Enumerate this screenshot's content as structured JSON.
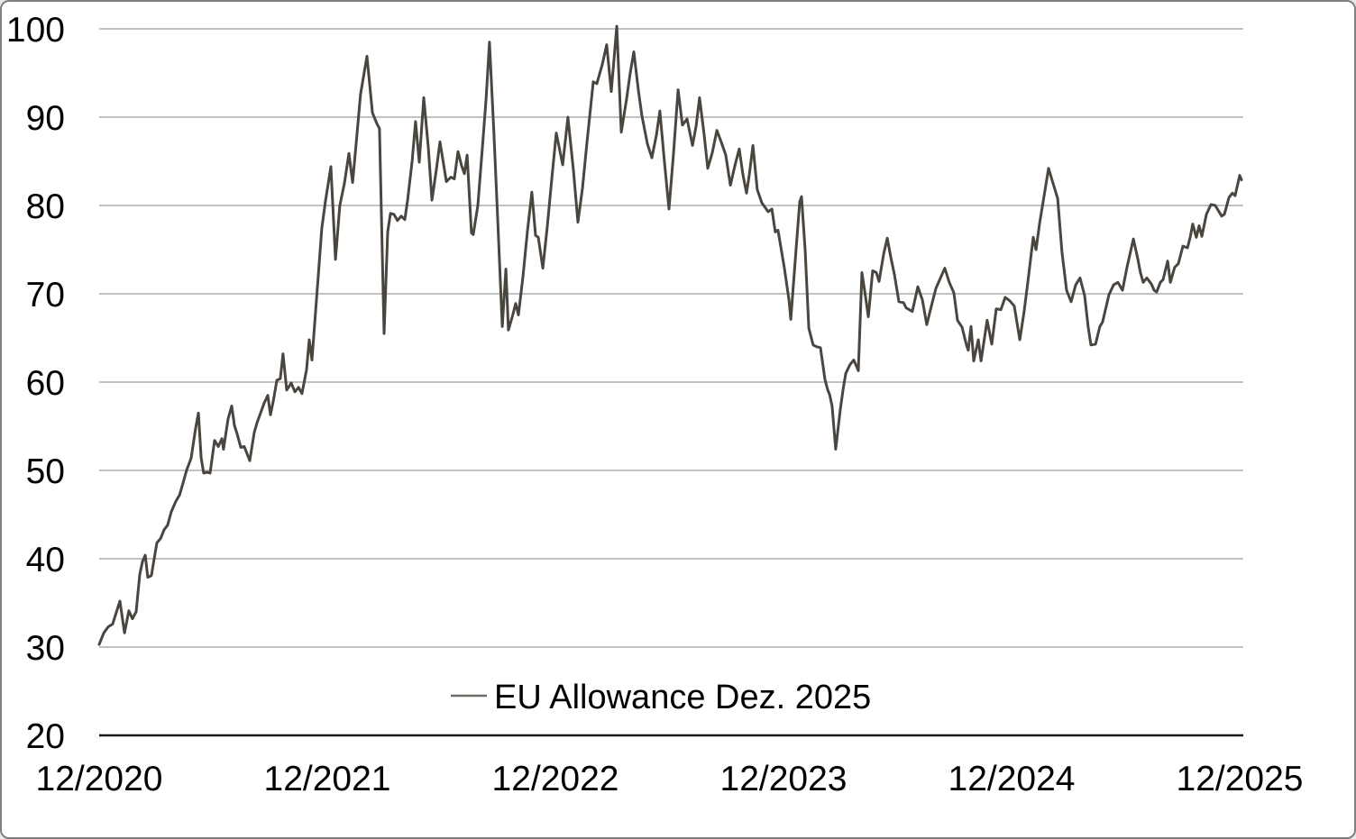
{
  "window": {
    "background": "#ffffff",
    "border_color": "#7f7f7f"
  },
  "chart_data": {
    "type": "line",
    "title": "",
    "xlabel": "",
    "ylabel": "",
    "grid": "horizontal",
    "x_tick_labels": [
      "12/2020",
      "12/2021",
      "12/2022",
      "12/2023",
      "12/2024",
      "12/2025"
    ],
    "x_range_years": [
      0,
      5
    ],
    "y_ticks": [
      20,
      30,
      40,
      50,
      60,
      70,
      80,
      90,
      100
    ],
    "ylim": [
      20,
      100
    ],
    "legend_position": "bottom-center",
    "colors": {
      "line": "#4b453f",
      "legend_marker": "#6e6a64",
      "gridline": "#9d9d9d",
      "axis_line": "#161616",
      "text": "#000000",
      "background": "#ffffff"
    },
    "series": [
      {
        "name": "EU Allowance Dez. 2025",
        "points": [
          [
            0.0,
            30.3
          ],
          [
            0.02,
            31.6
          ],
          [
            0.04,
            32.3
          ],
          [
            0.059,
            32.6
          ],
          [
            0.091,
            35.2
          ],
          [
            0.111,
            31.6
          ],
          [
            0.13,
            34.1
          ],
          [
            0.146,
            33.2
          ],
          [
            0.162,
            34.0
          ],
          [
            0.178,
            38.2
          ],
          [
            0.19,
            39.7
          ],
          [
            0.202,
            40.4
          ],
          [
            0.213,
            37.9
          ],
          [
            0.229,
            38.1
          ],
          [
            0.253,
            41.8
          ],
          [
            0.269,
            42.3
          ],
          [
            0.285,
            43.3
          ],
          [
            0.3,
            43.8
          ],
          [
            0.316,
            45.3
          ],
          [
            0.336,
            46.5
          ],
          [
            0.352,
            47.2
          ],
          [
            0.368,
            48.6
          ],
          [
            0.383,
            50.0
          ],
          [
            0.403,
            51.4
          ],
          [
            0.423,
            54.8
          ],
          [
            0.435,
            56.5
          ],
          [
            0.447,
            51.4
          ],
          [
            0.458,
            49.7
          ],
          [
            0.474,
            49.8
          ],
          [
            0.486,
            49.7
          ],
          [
            0.506,
            53.4
          ],
          [
            0.522,
            52.7
          ],
          [
            0.538,
            53.6
          ],
          [
            0.545,
            52.4
          ],
          [
            0.565,
            55.8
          ],
          [
            0.581,
            57.3
          ],
          [
            0.593,
            55.1
          ],
          [
            0.605,
            54.1
          ],
          [
            0.621,
            52.6
          ],
          [
            0.636,
            52.7
          ],
          [
            0.66,
            51.1
          ],
          [
            0.68,
            54.3
          ],
          [
            0.692,
            55.4
          ],
          [
            0.723,
            57.6
          ],
          [
            0.739,
            58.5
          ],
          [
            0.751,
            56.3
          ],
          [
            0.763,
            57.8
          ],
          [
            0.779,
            60.2
          ],
          [
            0.794,
            60.4
          ],
          [
            0.806,
            63.2
          ],
          [
            0.822,
            59.1
          ],
          [
            0.842,
            59.9
          ],
          [
            0.858,
            58.9
          ],
          [
            0.874,
            59.4
          ],
          [
            0.889,
            58.7
          ],
          [
            0.909,
            61.4
          ],
          [
            0.921,
            64.8
          ],
          [
            0.933,
            62.5
          ],
          [
            0.96,
            71.9
          ],
          [
            0.976,
            77.4
          ],
          [
            0.992,
            80.5
          ],
          [
            1.016,
            84.4
          ],
          [
            1.036,
            73.9
          ],
          [
            1.055,
            80.0
          ],
          [
            1.075,
            82.5
          ],
          [
            1.095,
            85.9
          ],
          [
            1.111,
            82.6
          ],
          [
            1.13,
            88.0
          ],
          [
            1.146,
            92.6
          ],
          [
            1.174,
            96.9
          ],
          [
            1.198,
            90.5
          ],
          [
            1.217,
            89.3
          ],
          [
            1.229,
            88.7
          ],
          [
            1.249,
            65.5
          ],
          [
            1.265,
            77.0
          ],
          [
            1.277,
            79.1
          ],
          [
            1.292,
            79.0
          ],
          [
            1.308,
            78.3
          ],
          [
            1.324,
            78.8
          ],
          [
            1.34,
            78.4
          ],
          [
            1.352,
            80.6
          ],
          [
            1.372,
            85.0
          ],
          [
            1.387,
            89.5
          ],
          [
            1.403,
            84.9
          ],
          [
            1.423,
            92.2
          ],
          [
            1.443,
            86.5
          ],
          [
            1.459,
            80.6
          ],
          [
            1.478,
            84.0
          ],
          [
            1.494,
            87.2
          ],
          [
            1.522,
            82.7
          ],
          [
            1.542,
            83.2
          ],
          [
            1.557,
            83.0
          ],
          [
            1.573,
            86.1
          ],
          [
            1.589,
            84.5
          ],
          [
            1.601,
            83.6
          ],
          [
            1.613,
            85.7
          ],
          [
            1.632,
            76.9
          ],
          [
            1.64,
            76.7
          ],
          [
            1.66,
            80.0
          ],
          [
            1.68,
            86.5
          ],
          [
            1.696,
            92.0
          ],
          [
            1.711,
            98.5
          ],
          [
            1.731,
            88.0
          ],
          [
            1.747,
            78.5
          ],
          [
            1.767,
            66.3
          ],
          [
            1.783,
            72.8
          ],
          [
            1.794,
            65.9
          ],
          [
            1.81,
            67.3
          ],
          [
            1.826,
            68.9
          ],
          [
            1.838,
            67.6
          ],
          [
            1.858,
            72.0
          ],
          [
            1.877,
            77.0
          ],
          [
            1.897,
            81.5
          ],
          [
            1.913,
            76.6
          ],
          [
            1.925,
            76.4
          ],
          [
            1.945,
            72.9
          ],
          [
            1.964,
            77.5
          ],
          [
            1.984,
            83.0
          ],
          [
            2.004,
            88.2
          ],
          [
            2.032,
            84.6
          ],
          [
            2.055,
            90.0
          ],
          [
            2.079,
            84.0
          ],
          [
            2.099,
            78.1
          ],
          [
            2.119,
            82.0
          ],
          [
            2.138,
            87.0
          ],
          [
            2.158,
            92.0
          ],
          [
            2.166,
            94.0
          ],
          [
            2.182,
            93.8
          ],
          [
            2.206,
            96.0
          ],
          [
            2.225,
            98.2
          ],
          [
            2.245,
            92.9
          ],
          [
            2.269,
            100.3
          ],
          [
            2.289,
            88.3
          ],
          [
            2.312,
            92.0
          ],
          [
            2.328,
            95.0
          ],
          [
            2.344,
            97.4
          ],
          [
            2.364,
            93.0
          ],
          [
            2.379,
            90.2
          ],
          [
            2.403,
            87.0
          ],
          [
            2.423,
            85.4
          ],
          [
            2.443,
            88.0
          ],
          [
            2.458,
            90.7
          ],
          [
            2.478,
            85.0
          ],
          [
            2.498,
            79.6
          ],
          [
            2.518,
            86.0
          ],
          [
            2.538,
            93.1
          ],
          [
            2.557,
            89.1
          ],
          [
            2.577,
            89.8
          ],
          [
            2.601,
            86.8
          ],
          [
            2.617,
            89.0
          ],
          [
            2.632,
            92.2
          ],
          [
            2.652,
            88.0
          ],
          [
            2.668,
            84.2
          ],
          [
            2.688,
            86.0
          ],
          [
            2.708,
            88.5
          ],
          [
            2.727,
            87.2
          ],
          [
            2.747,
            85.7
          ],
          [
            2.767,
            82.3
          ],
          [
            2.787,
            84.5
          ],
          [
            2.806,
            86.4
          ],
          [
            2.822,
            83.5
          ],
          [
            2.838,
            81.4
          ],
          [
            2.85,
            83.5
          ],
          [
            2.866,
            86.8
          ],
          [
            2.885,
            81.8
          ],
          [
            2.905,
            80.3
          ],
          [
            2.933,
            79.3
          ],
          [
            2.949,
            79.6
          ],
          [
            2.964,
            77.0
          ],
          [
            2.976,
            77.2
          ],
          [
            3.004,
            72.9
          ],
          [
            3.024,
            69.3
          ],
          [
            3.032,
            67.1
          ],
          [
            3.051,
            73.6
          ],
          [
            3.071,
            80.4
          ],
          [
            3.079,
            81.0
          ],
          [
            3.095,
            75.0
          ],
          [
            3.111,
            66.1
          ],
          [
            3.13,
            64.2
          ],
          [
            3.146,
            64.0
          ],
          [
            3.162,
            63.9
          ],
          [
            3.182,
            60.3
          ],
          [
            3.194,
            59.1
          ],
          [
            3.202,
            58.6
          ],
          [
            3.213,
            57.3
          ],
          [
            3.229,
            52.4
          ],
          [
            3.249,
            56.9
          ],
          [
            3.261,
            59.1
          ],
          [
            3.273,
            61.0
          ],
          [
            3.292,
            62.0
          ],
          [
            3.308,
            62.5
          ],
          [
            3.32,
            61.8
          ],
          [
            3.328,
            61.3
          ],
          [
            3.344,
            72.4
          ],
          [
            3.36,
            69.6
          ],
          [
            3.372,
            67.4
          ],
          [
            3.391,
            72.6
          ],
          [
            3.407,
            72.4
          ],
          [
            3.419,
            71.4
          ],
          [
            3.439,
            74.5
          ],
          [
            3.455,
            76.3
          ],
          [
            3.47,
            74.2
          ],
          [
            3.486,
            72.2
          ],
          [
            3.506,
            69.1
          ],
          [
            3.526,
            69.0
          ],
          [
            3.538,
            68.4
          ],
          [
            3.565,
            68.0
          ],
          [
            3.589,
            70.8
          ],
          [
            3.609,
            69.3
          ],
          [
            3.628,
            66.5
          ],
          [
            3.652,
            69.0
          ],
          [
            3.668,
            70.6
          ],
          [
            3.707,
            72.9
          ],
          [
            3.727,
            71.3
          ],
          [
            3.747,
            70.1
          ],
          [
            3.763,
            67.0
          ],
          [
            3.783,
            66.2
          ],
          [
            3.802,
            64.2
          ],
          [
            3.81,
            63.6
          ],
          [
            3.822,
            66.3
          ],
          [
            3.834,
            62.4
          ],
          [
            3.854,
            64.8
          ],
          [
            3.866,
            62.4
          ],
          [
            3.893,
            67.0
          ],
          [
            3.913,
            64.3
          ],
          [
            3.933,
            68.3
          ],
          [
            3.953,
            68.2
          ],
          [
            3.972,
            69.6
          ],
          [
            3.992,
            69.2
          ],
          [
            4.012,
            68.6
          ],
          [
            4.036,
            64.8
          ],
          [
            4.055,
            68.0
          ],
          [
            4.071,
            71.3
          ],
          [
            4.095,
            76.4
          ],
          [
            4.107,
            75.0
          ],
          [
            4.123,
            78.0
          ],
          [
            4.142,
            81.0
          ],
          [
            4.162,
            84.2
          ],
          [
            4.182,
            82.5
          ],
          [
            4.202,
            80.8
          ],
          [
            4.221,
            74.7
          ],
          [
            4.241,
            70.4
          ],
          [
            4.261,
            69.1
          ],
          [
            4.281,
            71.0
          ],
          [
            4.3,
            71.8
          ],
          [
            4.32,
            69.8
          ],
          [
            4.336,
            66.2
          ],
          [
            4.348,
            64.2
          ],
          [
            4.368,
            64.3
          ],
          [
            4.387,
            66.3
          ],
          [
            4.399,
            66.8
          ],
          [
            4.427,
            69.9
          ],
          [
            4.447,
            71.0
          ],
          [
            4.466,
            71.3
          ],
          [
            4.486,
            70.4
          ],
          [
            4.506,
            73.0
          ],
          [
            4.534,
            76.2
          ],
          [
            4.553,
            74.0
          ],
          [
            4.565,
            72.4
          ],
          [
            4.577,
            71.3
          ],
          [
            4.593,
            71.8
          ],
          [
            4.613,
            71.1
          ],
          [
            4.625,
            70.4
          ],
          [
            4.636,
            70.2
          ],
          [
            4.652,
            71.3
          ],
          [
            4.664,
            71.6
          ],
          [
            4.684,
            73.7
          ],
          [
            4.696,
            71.3
          ],
          [
            4.715,
            73.0
          ],
          [
            4.731,
            73.4
          ],
          [
            4.751,
            75.4
          ],
          [
            4.771,
            75.2
          ],
          [
            4.783,
            76.4
          ],
          [
            4.794,
            77.9
          ],
          [
            4.81,
            76.4
          ],
          [
            4.822,
            77.7
          ],
          [
            4.834,
            76.5
          ],
          [
            4.854,
            79.0
          ],
          [
            4.874,
            80.1
          ],
          [
            4.893,
            80.0
          ],
          [
            4.921,
            78.8
          ],
          [
            4.933,
            79.0
          ],
          [
            4.953,
            80.9
          ],
          [
            4.968,
            81.4
          ],
          [
            4.98,
            81.1
          ],
          [
            5.0,
            83.4
          ],
          [
            5.008,
            82.9
          ]
        ]
      }
    ]
  }
}
